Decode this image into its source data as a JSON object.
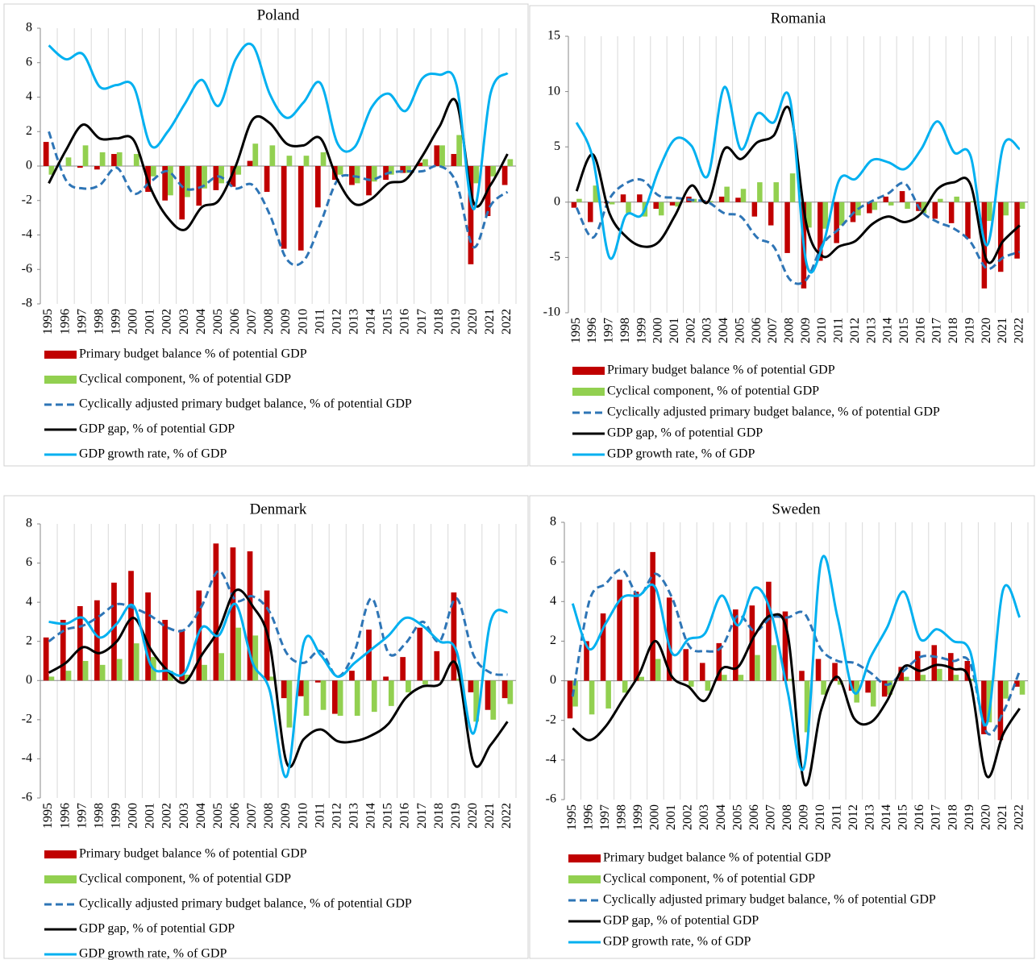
{
  "chart_data": [
    {
      "type": "combo",
      "title": "Poland",
      "categories": [
        "1995",
        "1996",
        "1997",
        "1998",
        "1999",
        "2000",
        "2001",
        "2002",
        "2003",
        "2004",
        "2005",
        "2006",
        "2007",
        "2008",
        "2009",
        "2010",
        "2011",
        "2012",
        "2013",
        "2014",
        "2015",
        "2016",
        "2017",
        "2018",
        "2019",
        "2020",
        "2021",
        "2022"
      ],
      "ylim": [
        -8,
        8
      ],
      "yticks": [
        -8,
        -6,
        -4,
        -2,
        0,
        2,
        4,
        6,
        8
      ],
      "series": [
        {
          "name": "Primary budget balance % of potential GDP",
          "type": "bar",
          "color": "#c00000",
          "values": [
            1.4,
            0,
            -0.1,
            -0.2,
            0.7,
            0,
            -1.5,
            -2.0,
            -3.1,
            -2.3,
            -1.4,
            -1.2,
            0.3,
            -1.5,
            -4.8,
            -4.9,
            -2.4,
            -0.8,
            -1.1,
            -1.7,
            -0.8,
            -0.4,
            0.2,
            1.2,
            0.7,
            -5.7,
            -2.9,
            -1.1
          ]
        },
        {
          "name": "Cyclical component, % of potential GDP",
          "type": "bar",
          "color": "#92d050",
          "values": [
            -0.5,
            0.5,
            1.2,
            0.8,
            0.8,
            0.7,
            -0.6,
            -1.7,
            -1.8,
            -1.3,
            -1.0,
            -0.5,
            1.3,
            1.2,
            0.6,
            0.6,
            0.8,
            -0.5,
            -1.0,
            -0.9,
            -0.5,
            -0.4,
            0.4,
            1.2,
            1.8,
            -1.0,
            -0.6,
            0.4
          ]
        },
        {
          "name": "Cyclically adjusted primary budget balance, % of potential GDP",
          "type": "line",
          "dash": true,
          "color": "#2e75b6",
          "values": [
            2.0,
            -0.8,
            -1.3,
            -1.1,
            -0.1,
            -1.6,
            -0.9,
            -0.3,
            -1.3,
            -1.2,
            -0.6,
            -1.3,
            -1.1,
            -2.8,
            -5.4,
            -5.5,
            -3.3,
            -0.8,
            -0.6,
            -0.8,
            -0.4,
            -0.3,
            -0.3,
            0.0,
            -1.0,
            -4.7,
            -2.3,
            -1.5
          ]
        },
        {
          "name": "GDP gap, % of potential GDP",
          "type": "line",
          "dash": false,
          "color": "#000000",
          "values": [
            -1.0,
            0.9,
            2.4,
            1.6,
            1.6,
            1.5,
            -1.3,
            -3.0,
            -3.7,
            -2.4,
            -2.0,
            0.0,
            2.7,
            2.5,
            1.3,
            1.2,
            1.6,
            -0.8,
            -2.2,
            -1.9,
            -1.0,
            -0.8,
            0.6,
            2.3,
            3.7,
            -2.1,
            -1.1,
            0.7
          ]
        },
        {
          "name": "GDP growth rate, % of GDP",
          "type": "line",
          "dash": false,
          "color": "#00b0f0",
          "values": [
            7.0,
            6.2,
            6.5,
            4.6,
            4.7,
            4.6,
            1.2,
            2.0,
            3.6,
            5.0,
            3.5,
            6.2,
            7.0,
            4.2,
            2.8,
            3.7,
            4.8,
            1.3,
            1.1,
            3.4,
            4.2,
            3.2,
            5.1,
            5.3,
            4.7,
            -2.5,
            4.2,
            5.4
          ]
        }
      ]
    },
    {
      "type": "combo",
      "title": "Romania",
      "categories": [
        "1995",
        "1996",
        "1997",
        "1998",
        "1999",
        "2000",
        "2001",
        "2002",
        "2003",
        "2004",
        "2005",
        "2006",
        "2007",
        "2008",
        "2009",
        "2010",
        "2011",
        "2012",
        "2013",
        "2014",
        "2015",
        "2016",
        "2017",
        "2018",
        "2019",
        "2020",
        "2021",
        "2022"
      ],
      "ylim": [
        -10,
        15
      ],
      "yticks": [
        -10,
        -5,
        0,
        5,
        10,
        15
      ],
      "series": [
        {
          "name": "Primary budget balance % of potential GDP",
          "type": "bar",
          "color": "#c00000",
          "values": [
            -0.5,
            -1.8,
            -0.1,
            0.7,
            0.7,
            -0.6,
            -0.3,
            0.5,
            0.1,
            0.5,
            0.4,
            -1.3,
            -2.1,
            -4.6,
            -7.8,
            -5.3,
            -3.7,
            -1.8,
            -1.0,
            0.5,
            1.0,
            -0.8,
            -1.5,
            -1.9,
            -3.3,
            -7.8,
            -6.3,
            -5.1
          ]
        },
        {
          "name": "Cyclical component, % of potential GDP",
          "type": "bar",
          "color": "#92d050",
          "values": [
            0.3,
            1.5,
            -0.2,
            -1.0,
            -1.3,
            -1.2,
            -0.4,
            0.3,
            0.1,
            1.4,
            1.2,
            1.8,
            1.8,
            2.6,
            -2.3,
            -2.4,
            -2.1,
            -1.2,
            -0.7,
            -0.3,
            -0.6,
            -1.0,
            0.3,
            0.5,
            0.1,
            -1.7,
            -1.2,
            -0.6
          ]
        },
        {
          "name": "Cyclically adjusted primary budget balance, % of potential GDP",
          "type": "line",
          "dash": true,
          "color": "#2e75b6",
          "values": [
            -0.5,
            -3.2,
            0.3,
            1.7,
            2.0,
            0.6,
            0.4,
            0.2,
            0.0,
            -1.0,
            -1.3,
            -3.2,
            -4.0,
            -7.0,
            -7.0,
            -3.8,
            -2.4,
            -0.8,
            0.1,
            0.8,
            1.7,
            -0.8,
            -1.8,
            -2.4,
            -3.6,
            -6.0,
            -5.0,
            -4.5
          ]
        },
        {
          "name": "GDP gap, % of potential GDP",
          "type": "line",
          "dash": false,
          "color": "#000000",
          "values": [
            1.0,
            4.3,
            -1.0,
            -3.1,
            -4.0,
            -3.6,
            -1.2,
            1.5,
            0.0,
            4.8,
            3.9,
            5.4,
            6.0,
            8.3,
            -2.0,
            -4.9,
            -4.0,
            -3.5,
            -2.0,
            -1.3,
            -1.8,
            -1.0,
            1.2,
            1.8,
            1.6,
            -5.3,
            -3.5,
            -2.1
          ]
        },
        {
          "name": "GDP growth rate, % of GDP",
          "type": "line",
          "dash": false,
          "color": "#00b0f0",
          "values": [
            7.2,
            3.9,
            -5.0,
            -1.2,
            -1.1,
            2.9,
            5.7,
            5.1,
            2.4,
            10.4,
            4.8,
            8.0,
            7.2,
            9.3,
            -5.5,
            -3.9,
            2.0,
            2.1,
            3.8,
            3.6,
            3.0,
            4.8,
            7.3,
            4.5,
            4.2,
            -3.9,
            5.1,
            4.8
          ]
        }
      ]
    },
    {
      "type": "combo",
      "title": "Denmark",
      "categories": [
        "1995",
        "1996",
        "1997",
        "1998",
        "1999",
        "2000",
        "2001",
        "2002",
        "2003",
        "2004",
        "2005",
        "2006",
        "2007",
        "2008",
        "2009",
        "2010",
        "2011",
        "2012",
        "2013",
        "2014",
        "2015",
        "2016",
        "2017",
        "2018",
        "2019",
        "2020",
        "2021",
        "2022"
      ],
      "ylim": [
        -6,
        8
      ],
      "yticks": [
        -6,
        -4,
        -2,
        0,
        2,
        4,
        6,
        8
      ],
      "series": [
        {
          "name": "Primary budget balance % of potential GDP",
          "type": "bar",
          "color": "#c00000",
          "values": [
            2.2,
            3.1,
            3.8,
            4.1,
            5.0,
            5.6,
            4.5,
            3.1,
            2.6,
            4.6,
            7.0,
            6.8,
            6.6,
            4.6,
            -0.9,
            -0.8,
            -0.1,
            -1.7,
            0.5,
            2.6,
            0.2,
            1.2,
            2.7,
            1.5,
            4.5,
            -0.6,
            -1.5,
            -0.9
          ]
        },
        {
          "name": "Cyclical component, % of potential GDP",
          "type": "bar",
          "color": "#92d050",
          "values": [
            0.2,
            0.5,
            1.0,
            0.8,
            1.1,
            1.9,
            1.2,
            0.5,
            0.3,
            0.8,
            1.4,
            2.7,
            2.3,
            0.2,
            -2.4,
            -1.8,
            -1.5,
            -1.8,
            -1.8,
            -1.6,
            -1.3,
            -0.6,
            -0.2,
            0.0,
            0.1,
            -2.1,
            -2.0,
            -1.2
          ]
        },
        {
          "name": "Cyclically adjusted primary budget balance, % of potential GDP",
          "type": "line",
          "dash": true,
          "color": "#2e75b6",
          "values": [
            2.0,
            2.6,
            2.8,
            3.3,
            3.9,
            3.7,
            3.3,
            2.7,
            2.6,
            3.8,
            5.6,
            4.1,
            4.3,
            3.5,
            1.4,
            0.9,
            1.5,
            0.2,
            1.5,
            4.2,
            1.4,
            1.9,
            3.0,
            2.0,
            4.2,
            1.3,
            0.4,
            0.3
          ]
        },
        {
          "name": "GDP gap, % of potential GDP",
          "type": "line",
          "dash": false,
          "color": "#000000",
          "values": [
            0.4,
            0.9,
            1.7,
            1.4,
            2.0,
            3.2,
            1.6,
            0.5,
            -0.1,
            1.3,
            2.6,
            4.6,
            3.8,
            1.9,
            -4.2,
            -3.0,
            -2.5,
            -3.1,
            -3.1,
            -2.8,
            -2.2,
            -0.9,
            -0.3,
            -0.2,
            0.8,
            -4.2,
            -3.3,
            -2.1
          ]
        },
        {
          "name": "GDP growth rate, % of GDP",
          "type": "line",
          "dash": false,
          "color": "#00b0f0",
          "values": [
            3.0,
            2.9,
            3.2,
            2.2,
            2.9,
            3.8,
            0.8,
            0.5,
            0.4,
            2.7,
            2.3,
            3.9,
            0.9,
            -0.5,
            -4.9,
            1.9,
            1.3,
            0.2,
            0.9,
            1.6,
            2.3,
            3.2,
            2.8,
            2.0,
            1.5,
            -2.7,
            3.0,
            3.5
          ]
        }
      ]
    },
    {
      "type": "combo",
      "title": "Sweden",
      "categories": [
        "1995",
        "1996",
        "1997",
        "1998",
        "1999",
        "2000",
        "2001",
        "2002",
        "2003",
        "2004",
        "2005",
        "2006",
        "2007",
        "2008",
        "2009",
        "2010",
        "2011",
        "2012",
        "2013",
        "2014",
        "2015",
        "2016",
        "2017",
        "2018",
        "2019",
        "2020",
        "2021",
        "2022"
      ],
      "ylim": [
        -6,
        8
      ],
      "yticks": [
        -6,
        -4,
        -2,
        0,
        2,
        4,
        6,
        8
      ],
      "series": [
        {
          "name": "Primary budget balance % of potential GDP",
          "type": "bar",
          "color": "#c00000",
          "values": [
            -1.9,
            2.0,
            3.4,
            5.1,
            4.5,
            6.5,
            4.2,
            1.6,
            0.9,
            1.9,
            3.6,
            3.8,
            5.0,
            3.5,
            0.5,
            1.1,
            0.9,
            -0.5,
            -0.6,
            -0.8,
            0.7,
            1.5,
            1.8,
            1.4,
            1.0,
            -2.7,
            -3.0,
            -0.3
          ]
        },
        {
          "name": "Cyclical component, % of potential GDP",
          "type": "bar",
          "color": "#92d050",
          "values": [
            -1.3,
            -1.7,
            -1.4,
            -0.6,
            0.2,
            1.1,
            0.0,
            -0.3,
            -0.5,
            0.3,
            0.3,
            1.3,
            1.8,
            0.1,
            -2.6,
            -0.7,
            -0.2,
            -1.1,
            -1.3,
            -0.7,
            0.2,
            0.3,
            0.6,
            0.3,
            0.1,
            -2.1,
            -0.9,
            -0.7
          ]
        },
        {
          "name": "Cyclically adjusted primary budget balance, % of potential GDP",
          "type": "line",
          "dash": true,
          "color": "#2e75b6",
          "values": [
            -0.8,
            4.0,
            4.9,
            5.6,
            4.3,
            5.4,
            4.2,
            1.8,
            1.5,
            1.7,
            3.3,
            2.5,
            3.2,
            3.2,
            3.4,
            1.6,
            1.0,
            0.9,
            0.4,
            -0.2,
            0.5,
            1.2,
            1.2,
            1.0,
            0.9,
            -2.6,
            -1.6,
            0.5
          ]
        },
        {
          "name": "GDP gap, % of potential GDP",
          "type": "line",
          "dash": false,
          "color": "#000000",
          "values": [
            -2.4,
            -3.0,
            -2.3,
            -1.0,
            0.3,
            2.0,
            0.2,
            -0.3,
            -1.0,
            0.6,
            0.7,
            2.3,
            3.3,
            2.3,
            -5.2,
            -1.5,
            0.2,
            -1.9,
            -2.1,
            -1.0,
            0.7,
            0.5,
            0.8,
            0.6,
            0.0,
            -4.8,
            -2.7,
            -1.4
          ]
        },
        {
          "name": "GDP growth rate, % of GDP",
          "type": "line",
          "dash": false,
          "color": "#00b0f0",
          "values": [
            3.9,
            1.6,
            2.9,
            4.2,
            4.3,
            4.7,
            1.4,
            2.1,
            2.4,
            4.3,
            2.8,
            4.7,
            3.4,
            -0.6,
            -4.3,
            6.0,
            3.2,
            -0.6,
            1.2,
            2.7,
            4.5,
            2.1,
            2.6,
            2.0,
            1.5,
            -2.2,
            4.6,
            3.2
          ]
        }
      ]
    }
  ]
}
